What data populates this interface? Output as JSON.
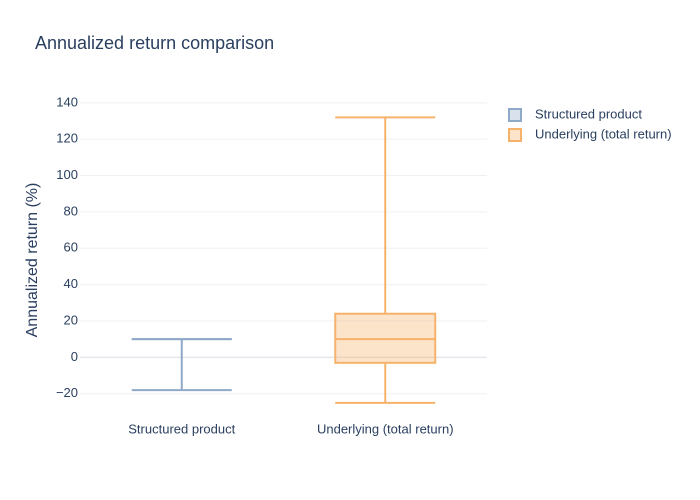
{
  "chart_data": {
    "type": "box",
    "title": "Annualized return comparison",
    "y_label": "Annualized return (%)",
    "categories": [
      "Structured product",
      "Underlying (total return)"
    ],
    "series": [
      {
        "name": "Structured product",
        "color": "#8fa9c8",
        "min": -18,
        "q1": 10,
        "median": 10,
        "q3": 10,
        "max": 10
      },
      {
        "name": "Underlying (total return)",
        "color": "#f6b26b",
        "min": -25,
        "q1": -3,
        "median": 10,
        "q3": 24,
        "max": 132
      }
    ],
    "ylim": [
      -29.5,
      141
    ],
    "yticks": [
      {
        "value": -20,
        "label": "−20"
      },
      0,
      20,
      40,
      60,
      80,
      100,
      120,
      140
    ],
    "grid": true
  }
}
